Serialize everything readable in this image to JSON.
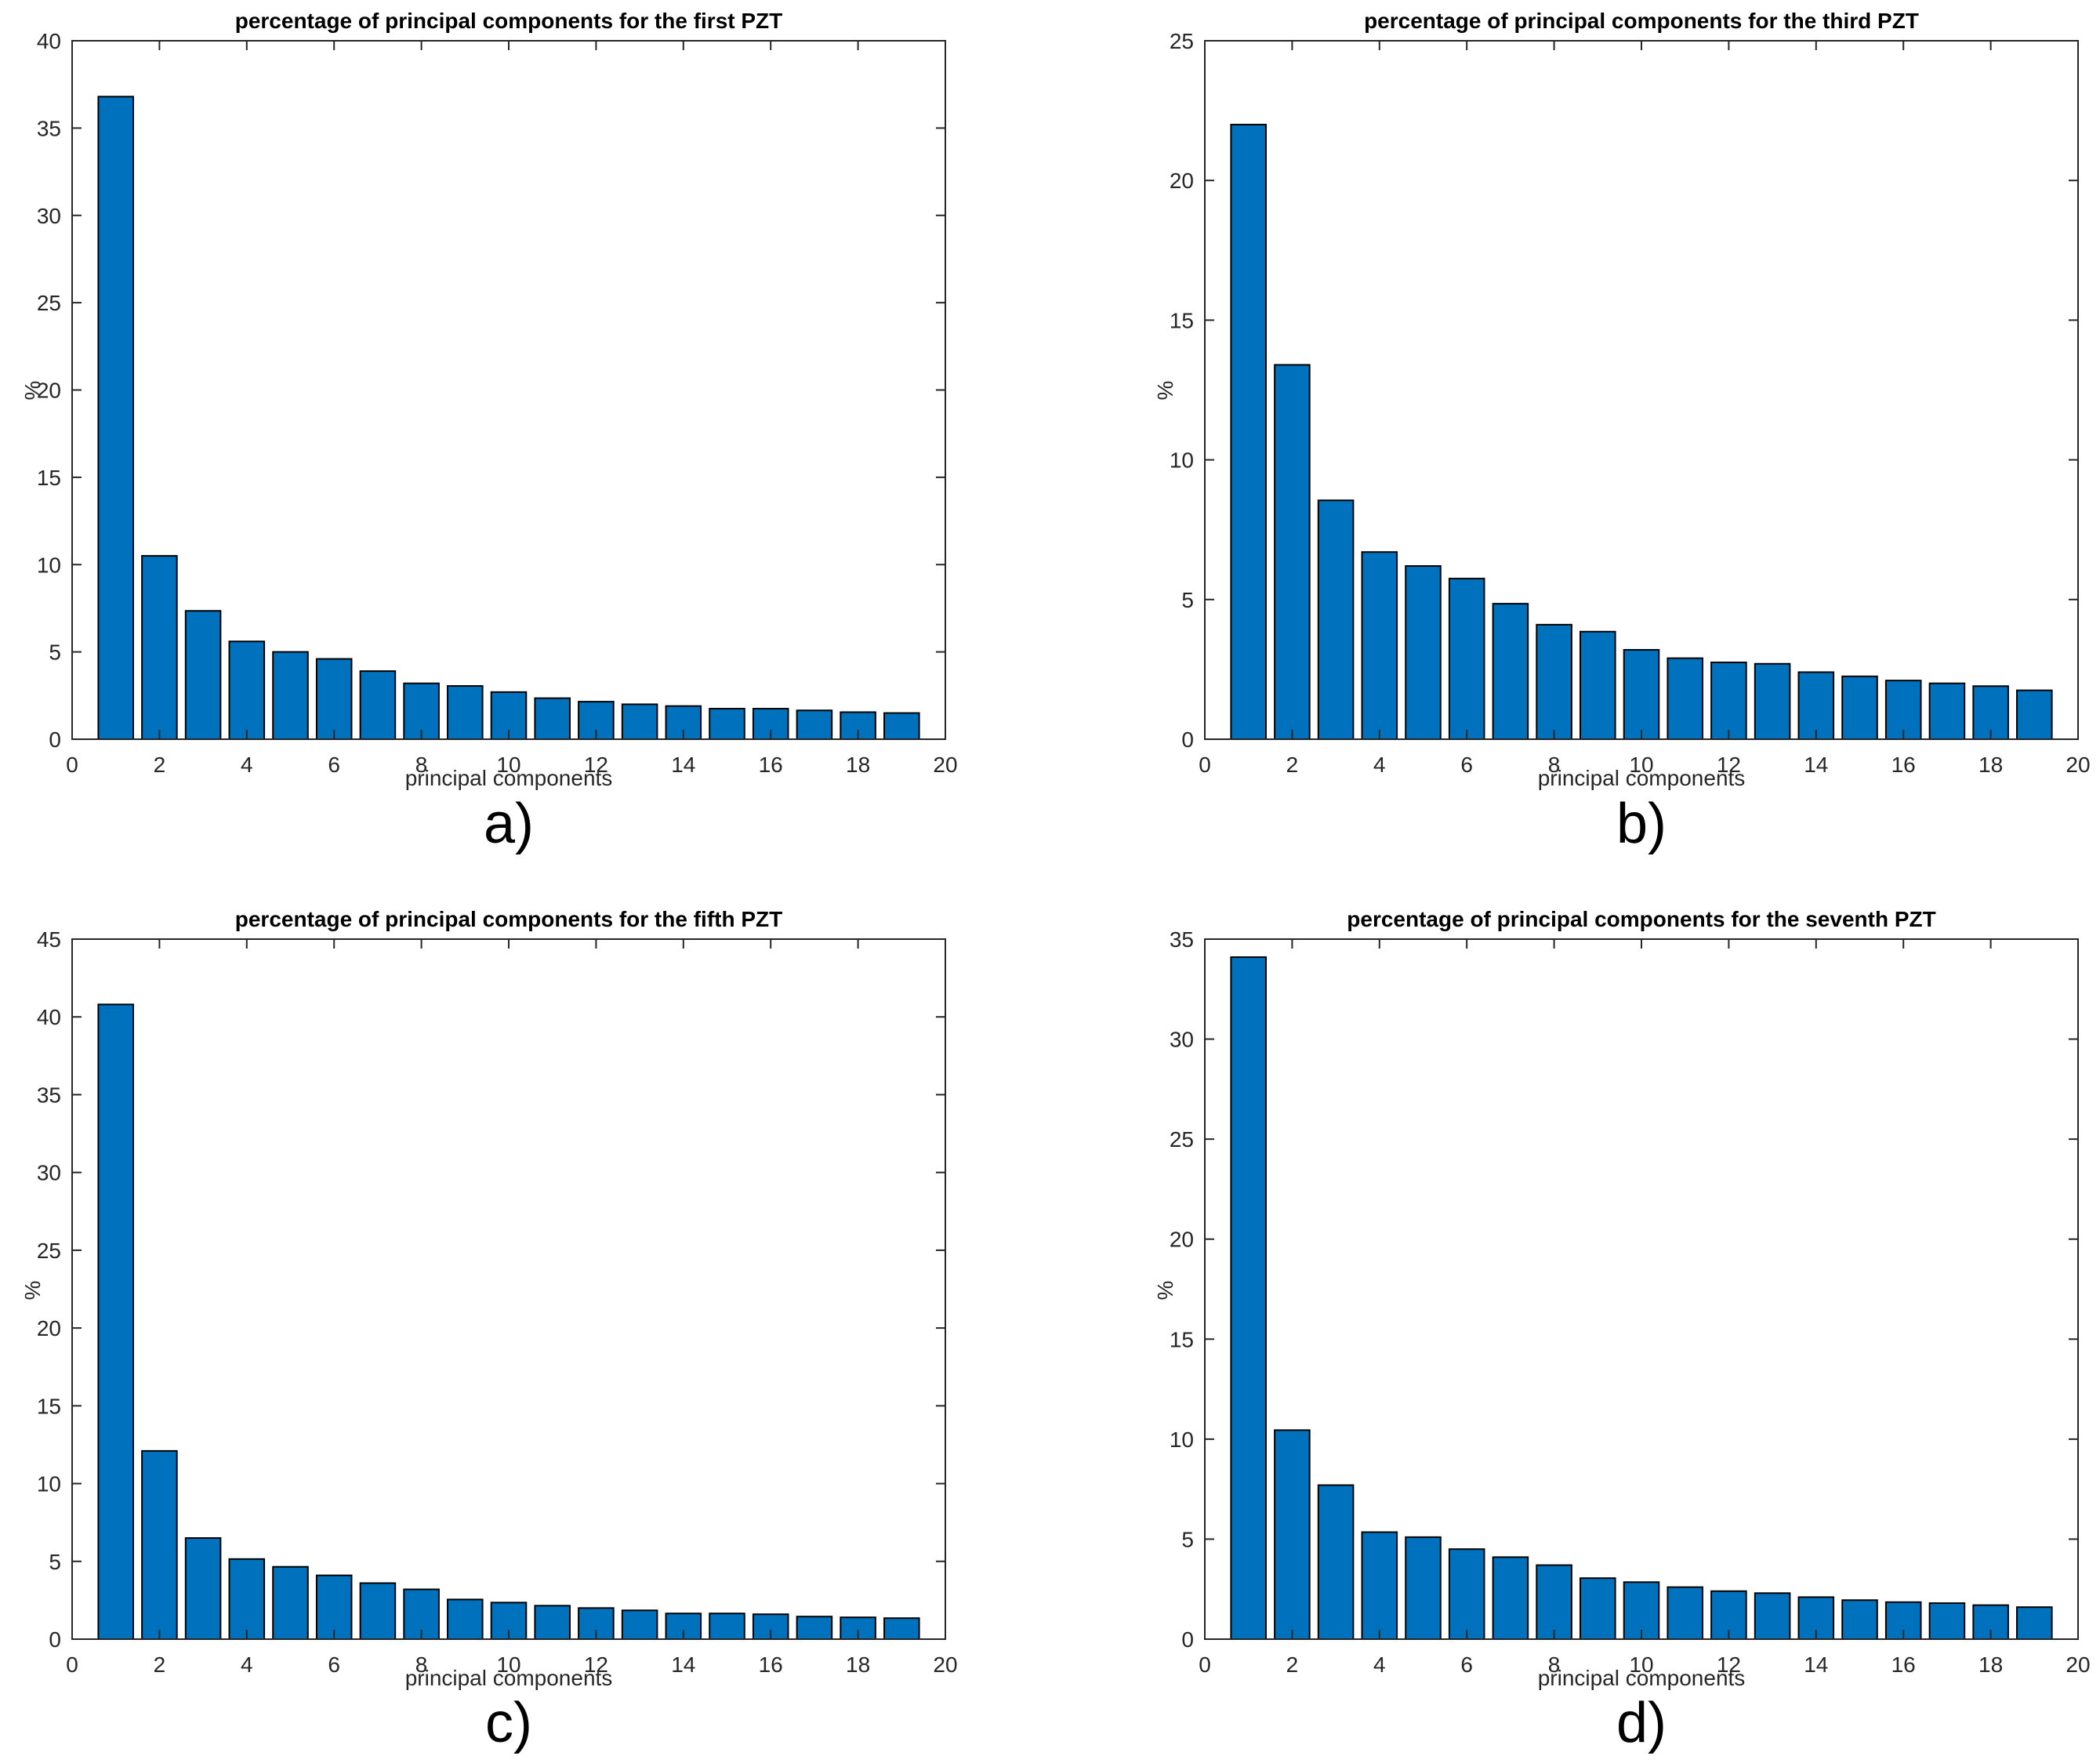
{
  "figure": {
    "background": "#ffffff",
    "axis_color": "#262626",
    "title_color": "#000000"
  },
  "chart_data": [
    {
      "id": "a",
      "type": "bar",
      "title": "percentage of principal components for the first PZT",
      "xlabel": "principal components",
      "ylabel": "%",
      "caption": "a)",
      "categories": [
        1,
        2,
        3,
        4,
        5,
        6,
        7,
        8,
        9,
        10,
        11,
        12,
        13,
        14,
        15,
        16,
        17,
        18,
        19
      ],
      "values": [
        36.8,
        10.5,
        7.35,
        5.6,
        5.0,
        4.6,
        3.9,
        3.2,
        3.05,
        2.7,
        2.35,
        2.15,
        2.0,
        1.9,
        1.75,
        1.75,
        1.65,
        1.55,
        1.5
      ],
      "xlim": [
        0,
        20
      ],
      "ylim": [
        0,
        40
      ],
      "xticks": [
        0,
        2,
        4,
        6,
        8,
        10,
        12,
        14,
        16,
        18,
        20
      ],
      "yticks": [
        0,
        5,
        10,
        15,
        20,
        25,
        30,
        35,
        40
      ],
      "grid": false,
      "legend": false,
      "bar_width": 0.8,
      "bar_color": "#0072BD",
      "bar_edge_color": "#000000"
    },
    {
      "id": "b",
      "type": "bar",
      "title": "percentage of principal components for the third PZT",
      "xlabel": "principal components",
      "ylabel": "%",
      "caption": "b)",
      "categories": [
        1,
        2,
        3,
        4,
        5,
        6,
        7,
        8,
        9,
        10,
        11,
        12,
        13,
        14,
        15,
        16,
        17,
        18,
        19
      ],
      "values": [
        22.0,
        13.4,
        8.55,
        6.7,
        6.2,
        5.75,
        4.85,
        4.1,
        3.85,
        3.2,
        2.9,
        2.75,
        2.7,
        2.4,
        2.25,
        2.1,
        2.0,
        1.9,
        1.75
      ],
      "xlim": [
        0,
        20
      ],
      "ylim": [
        0,
        25
      ],
      "xticks": [
        0,
        2,
        4,
        6,
        8,
        10,
        12,
        14,
        16,
        18,
        20
      ],
      "yticks": [
        0,
        5,
        10,
        15,
        20,
        25
      ],
      "grid": false,
      "legend": false,
      "bar_width": 0.8,
      "bar_color": "#0072BD",
      "bar_edge_color": "#000000"
    },
    {
      "id": "c",
      "type": "bar",
      "title": "percentage of principal components for the fifth PZT",
      "xlabel": "principal components",
      "ylabel": "%",
      "caption": "c)",
      "categories": [
        1,
        2,
        3,
        4,
        5,
        6,
        7,
        8,
        9,
        10,
        11,
        12,
        13,
        14,
        15,
        16,
        17,
        18,
        19
      ],
      "values": [
        40.8,
        12.1,
        6.5,
        5.15,
        4.65,
        4.1,
        3.6,
        3.2,
        2.55,
        2.35,
        2.15,
        2.0,
        1.85,
        1.65,
        1.65,
        1.6,
        1.45,
        1.4,
        1.35
      ],
      "xlim": [
        0,
        20
      ],
      "ylim": [
        0,
        45
      ],
      "xticks": [
        0,
        2,
        4,
        6,
        8,
        10,
        12,
        14,
        16,
        18,
        20
      ],
      "yticks": [
        0,
        5,
        10,
        15,
        20,
        25,
        30,
        35,
        40,
        45
      ],
      "grid": false,
      "legend": false,
      "bar_width": 0.8,
      "bar_color": "#0072BD",
      "bar_edge_color": "#000000"
    },
    {
      "id": "d",
      "type": "bar",
      "title": "percentage of principal components for the seventh PZT",
      "xlabel": "principal components",
      "ylabel": "%",
      "caption": "d)",
      "categories": [
        1,
        2,
        3,
        4,
        5,
        6,
        7,
        8,
        9,
        10,
        11,
        12,
        13,
        14,
        15,
        16,
        17,
        18,
        19
      ],
      "values": [
        34.1,
        10.45,
        7.7,
        5.35,
        5.1,
        4.5,
        4.1,
        3.7,
        3.05,
        2.85,
        2.6,
        2.4,
        2.3,
        2.1,
        1.95,
        1.85,
        1.8,
        1.7,
        1.6
      ],
      "xlim": [
        0,
        20
      ],
      "ylim": [
        0,
        35
      ],
      "xticks": [
        0,
        2,
        4,
        6,
        8,
        10,
        12,
        14,
        16,
        18,
        20
      ],
      "yticks": [
        0,
        5,
        10,
        15,
        20,
        25,
        30,
        35
      ],
      "grid": false,
      "legend": false,
      "bar_width": 0.8,
      "bar_color": "#0072BD",
      "bar_edge_color": "#000000"
    }
  ]
}
